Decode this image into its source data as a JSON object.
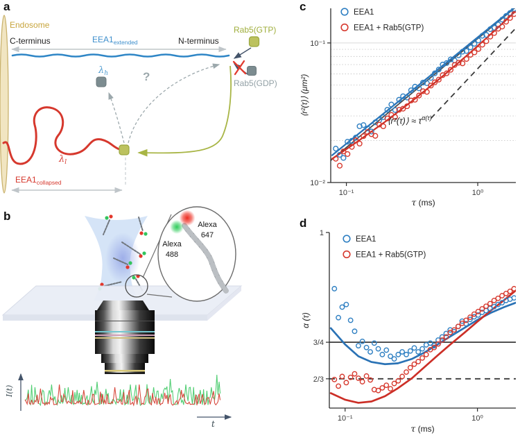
{
  "figure": {
    "panel_labels": {
      "a": "a",
      "b": "b",
      "c": "c",
      "d": "d"
    }
  },
  "palette": {
    "blue": "#2E7FC2",
    "red": "#D6382D",
    "olive": "#A8B545",
    "olive_fill": "#BCC25F",
    "gray_square": "#7C8C90",
    "endosome_fill": "#F1E5C1",
    "endosome_stroke": "#C9B26E",
    "muted_gray": "#9CA8AC",
    "arrow_gray": "#BFC5C9",
    "slate": "#44546A",
    "green_dye": "#33C45C",
    "red_dye": "#E3372B"
  },
  "panel_a": {
    "endosome": "Endosome",
    "c_terminus": "C-terminus",
    "n_terminus": "N-terminus",
    "eea1_extended": {
      "base": "EEA1",
      "sub": "extended"
    },
    "eea1_collapsed": {
      "base": "EEA1",
      "sub": "collapsed"
    },
    "rab5_gtp": "Rab5(GTP)",
    "rab5_gdp": "Rab5(GDP)",
    "lambda_h": {
      "base": "λ",
      "sub": "h"
    },
    "lambda_l": {
      "base": "λ",
      "sub": "l"
    },
    "question_mark": "?"
  },
  "panel_b": {
    "alexa488": {
      "line1": "Alexa",
      "line2": "488"
    },
    "alexa647": {
      "line1": "Alexa",
      "line2": "647"
    },
    "intensity_label": "I(t)",
    "time_label": "t"
  },
  "chart_data": [
    {
      "panel": "c",
      "type": "scatter",
      "xscale": "log",
      "yscale": "log",
      "xlim": [
        0.076,
        1.95
      ],
      "ylim": [
        0.01,
        0.177
      ],
      "xlabel_sym": "τ",
      "xlabel_unit": " (ms)",
      "ylabel": "⟨r²(τ)⟩ (μm²)",
      "xticks": [
        {
          "v": 0.1,
          "label": "10⁻¹"
        },
        {
          "v": 1,
          "label": "10⁰"
        }
      ],
      "yticks": [
        {
          "v": 0.1,
          "label": "10⁻¹"
        },
        {
          "v": 0.01,
          "label": "10⁻²"
        }
      ],
      "grid": {
        "solid": [
          0.1
        ],
        "dotted": [
          0.02,
          0.03,
          0.04,
          0.05,
          0.06,
          0.07,
          0.08,
          0.09
        ]
      },
      "annotation": {
        "x": 0.205,
        "y": 0.0263,
        "main": "⟨r²(τ)⟩ ≈ τ",
        "sup": "α(τ)"
      },
      "reference_lines": [
        {
          "style": "solid",
          "color": "#4A4A4A",
          "tau": [
            0.076,
            2.0
          ],
          "values": [
            0.0144,
            0.1845
          ],
          "label": "power-law guide"
        },
        {
          "style": "dashed",
          "color": "#3A3A3A",
          "tau": [
            0.44,
            2.05
          ],
          "values": [
            0.0288,
            0.1343
          ],
          "label": "normal-diffusion guide"
        }
      ],
      "tau": [
        0.083,
        0.089,
        0.095,
        0.102,
        0.11,
        0.118,
        0.126,
        0.135,
        0.145,
        0.155,
        0.166,
        0.178,
        0.191,
        0.205,
        0.22,
        0.235,
        0.252,
        0.27,
        0.29,
        0.311,
        0.333,
        0.357,
        0.383,
        0.41,
        0.44,
        0.471,
        0.505,
        0.541,
        0.58,
        0.622,
        0.667,
        0.715,
        0.766,
        0.821,
        0.88,
        0.944,
        1.012,
        1.084,
        1.162,
        1.246,
        1.335,
        1.431,
        1.534,
        1.645,
        1.763,
        1.89
      ],
      "series": [
        {
          "name": "EEA1",
          "color": "#2E7FC2",
          "fit_color": "#2A72B5",
          "values": [
            0.0175,
            0.0158,
            0.015,
            0.0196,
            0.0199,
            0.021,
            0.0253,
            0.0258,
            0.0244,
            0.0232,
            0.027,
            0.028,
            0.0294,
            0.0332,
            0.0362,
            0.0331,
            0.0392,
            0.0415,
            0.0406,
            0.0458,
            0.0486,
            0.0473,
            0.052,
            0.0515,
            0.0562,
            0.0606,
            0.0645,
            0.07,
            0.0718,
            0.0762,
            0.0749,
            0.0815,
            0.0866,
            0.0876,
            0.093,
            0.0986,
            0.1042,
            0.1126,
            0.1142,
            0.1256,
            0.1286,
            0.1356,
            0.147,
            0.156,
            0.164,
            0.1755
          ],
          "fit": {
            "tau": [
              0.078,
              2.0
            ],
            "values": [
              0.0157,
              0.1862
            ]
          }
        },
        {
          "name": "EEA1 + Rab5(GTP)",
          "color": "#D6382D",
          "fit_color": "#CC2F27",
          "values": [
            0.0148,
            0.0132,
            0.0167,
            0.016,
            0.018,
            0.0201,
            0.019,
            0.0215,
            0.023,
            0.0222,
            0.0216,
            0.026,
            0.0253,
            0.0288,
            0.0305,
            0.0295,
            0.0332,
            0.0338,
            0.0352,
            0.0387,
            0.0392,
            0.042,
            0.0451,
            0.0446,
            0.0495,
            0.0522,
            0.0546,
            0.0588,
            0.0606,
            0.0642,
            0.0695,
            0.0722,
            0.0714,
            0.0768,
            0.0822,
            0.0856,
            0.0905,
            0.0972,
            0.103,
            0.111,
            0.1178,
            0.1265,
            0.131,
            0.142,
            0.151,
            0.161
          ],
          "fit": {
            "tau": [
              0.078,
              0.12,
              0.2,
              0.32,
              0.52,
              0.85,
              1.35,
              2.0
            ],
            "values": [
              0.0148,
              0.0195,
              0.0275,
              0.0387,
              0.056,
              0.0831,
              0.1228,
              0.1735
            ]
          }
        }
      ]
    },
    {
      "panel": "d",
      "type": "scatter",
      "xscale": "log",
      "yscale": "linear",
      "xlim": [
        0.076,
        1.95
      ],
      "ylim": [
        0.6,
        1.0
      ],
      "xlabel_sym": "τ",
      "xlabel_unit": " (ms)",
      "ylabel": "α (τ)",
      "xticks": [
        {
          "v": 0.1,
          "label": "10⁻¹"
        },
        {
          "v": 1,
          "label": "10⁰"
        }
      ],
      "yticks": [
        {
          "v": 1,
          "label": "1"
        },
        {
          "v": 0.75,
          "label": "3/4"
        },
        {
          "v": 0.6667,
          "label": "2/3"
        }
      ],
      "reference_lines": [
        {
          "style": "solid",
          "color": "#3A3A3A",
          "y": 0.75,
          "label": "3/4 line"
        },
        {
          "style": "dashed",
          "color": "#3A3A3A",
          "y": 0.6667,
          "label": "2/3 line"
        }
      ],
      "tau": [
        0.083,
        0.089,
        0.095,
        0.102,
        0.11,
        0.118,
        0.126,
        0.135,
        0.145,
        0.155,
        0.166,
        0.178,
        0.191,
        0.205,
        0.22,
        0.235,
        0.252,
        0.27,
        0.29,
        0.311,
        0.333,
        0.357,
        0.383,
        0.41,
        0.44,
        0.471,
        0.505,
        0.541,
        0.58,
        0.622,
        0.667,
        0.715,
        0.766,
        0.821,
        0.88,
        0.944,
        1.012,
        1.084,
        1.162,
        1.246,
        1.335,
        1.431,
        1.534,
        1.645,
        1.763,
        1.89
      ],
      "series": [
        {
          "name": "EEA1",
          "color": "#2E7FC2",
          "fit_color": "#2A72B5",
          "values": [
            0.872,
            0.806,
            0.83,
            0.836,
            0.8,
            0.775,
            0.742,
            0.752,
            0.738,
            0.728,
            0.748,
            0.735,
            0.722,
            0.732,
            0.718,
            0.712,
            0.722,
            0.728,
            0.722,
            0.73,
            0.737,
            0.728,
            0.735,
            0.744,
            0.748,
            0.742,
            0.755,
            0.762,
            0.77,
            0.778,
            0.774,
            0.786,
            0.798,
            0.792,
            0.802,
            0.808,
            0.812,
            0.818,
            0.822,
            0.827,
            0.831,
            0.836,
            0.84,
            0.845,
            0.848,
            0.851
          ],
          "fit": {
            "tau": [
              0.078,
              0.1,
              0.126,
              0.158,
              0.2,
              0.25,
              0.32,
              0.4,
              0.5,
              0.63,
              0.8,
              1.0,
              1.26,
              1.59,
              1.95
            ],
            "values": [
              0.782,
              0.745,
              0.718,
              0.705,
              0.7,
              0.702,
              0.712,
              0.727,
              0.745,
              0.764,
              0.783,
              0.801,
              0.817,
              0.83,
              0.84
            ]
          }
        },
        {
          "name": "EEA1 + Rab5(GTP)",
          "color": "#D6382D",
          "fit_color": "#CC2F27",
          "values": [
            0.665,
            0.65,
            0.672,
            0.658,
            0.67,
            0.678,
            0.668,
            0.66,
            0.673,
            0.664,
            0.642,
            0.64,
            0.646,
            0.652,
            0.644,
            0.656,
            0.662,
            0.672,
            0.682,
            0.692,
            0.7,
            0.706,
            0.714,
            0.722,
            0.733,
            0.738,
            0.746,
            0.755,
            0.762,
            0.772,
            0.778,
            0.786,
            0.793,
            0.8,
            0.807,
            0.814,
            0.82,
            0.826,
            0.832,
            0.838,
            0.845,
            0.85,
            0.856,
            0.861,
            0.866,
            0.872
          ],
          "fit": {
            "tau": [
              0.078,
              0.1,
              0.126,
              0.158,
              0.2,
              0.25,
              0.32,
              0.4,
              0.5,
              0.63,
              0.8,
              1.0,
              1.26,
              1.59,
              1.95
            ],
            "values": [
              0.634,
              0.619,
              0.612,
              0.615,
              0.627,
              0.645,
              0.668,
              0.694,
              0.72,
              0.746,
              0.772,
              0.797,
              0.822,
              0.846,
              0.868
            ]
          }
        }
      ]
    }
  ]
}
